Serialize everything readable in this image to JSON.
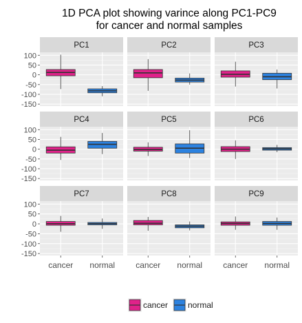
{
  "chart_data": {
    "type": "box",
    "title_lines": [
      "1D PCA plot showing varince along PC1-PC9",
      "for cancer and normal samples"
    ],
    "facets": [
      "PC1",
      "PC2",
      "PC3",
      "PC4",
      "PC5",
      "PC6",
      "PC7",
      "PC8",
      "PC9"
    ],
    "categories": [
      "cancer",
      "normal"
    ],
    "y_ticks": [
      100,
      50,
      0,
      -50,
      -100,
      -150
    ],
    "ylim": [
      -160,
      115
    ],
    "grid": true,
    "legend_position": "bottom",
    "colors": {
      "cancer": "#e0228a",
      "normal": "#2c82e0",
      "panel_bg": "#ebebeb",
      "strip_bg": "#d9d9d9",
      "grid_major": "#ffffff"
    },
    "legend": [
      {
        "label": "cancer",
        "color": "#e0228a"
      },
      {
        "label": "normal",
        "color": "#2c82e0"
      }
    ],
    "series": [
      {
        "facet": "PC1",
        "group": "cancer",
        "min": -73,
        "q1": -5,
        "median": 12,
        "q3": 27,
        "max": 103
      },
      {
        "facet": "PC1",
        "group": "normal",
        "min": -110,
        "q1": -92,
        "median": -82,
        "q3": -72,
        "max": -58
      },
      {
        "facet": "PC2",
        "group": "cancer",
        "min": -82,
        "q1": -15,
        "median": 10,
        "q3": 27,
        "max": 80
      },
      {
        "facet": "PC2",
        "group": "normal",
        "min": -50,
        "q1": -37,
        "median": -27,
        "q3": -17,
        "max": 7
      },
      {
        "facet": "PC3",
        "group": "cancer",
        "min": -60,
        "q1": -12,
        "median": 3,
        "q3": 20,
        "max": 67
      },
      {
        "facet": "PC3",
        "group": "normal",
        "min": -70,
        "q1": -25,
        "median": -10,
        "q3": 8,
        "max": 27
      },
      {
        "facet": "PC4",
        "group": "cancer",
        "min": -55,
        "q1": -20,
        "median": -5,
        "q3": 12,
        "max": 63
      },
      {
        "facet": "PC4",
        "group": "normal",
        "min": -25,
        "q1": 5,
        "median": 25,
        "q3": 40,
        "max": 83
      },
      {
        "facet": "PC5",
        "group": "cancer",
        "min": -35,
        "q1": -10,
        "median": -2,
        "q3": 10,
        "max": 35
      },
      {
        "facet": "PC5",
        "group": "normal",
        "min": -45,
        "q1": -20,
        "median": 5,
        "q3": 27,
        "max": 97
      },
      {
        "facet": "PC6",
        "group": "cancer",
        "min": -50,
        "q1": -12,
        "median": 0,
        "q3": 13,
        "max": 45
      },
      {
        "facet": "PC6",
        "group": "normal",
        "min": -15,
        "q1": -5,
        "median": 2,
        "q3": 8,
        "max": 22
      },
      {
        "facet": "PC7",
        "group": "cancer",
        "min": -40,
        "q1": -7,
        "median": 1,
        "q3": 12,
        "max": 40
      },
      {
        "facet": "PC7",
        "group": "normal",
        "min": -25,
        "q1": -5,
        "median": 1,
        "q3": 7,
        "max": 27
      },
      {
        "facet": "PC8",
        "group": "cancer",
        "min": -35,
        "q1": -5,
        "median": 3,
        "q3": 17,
        "max": 35
      },
      {
        "facet": "PC8",
        "group": "normal",
        "min": -33,
        "q1": -20,
        "median": -12,
        "q3": -5,
        "max": 12
      },
      {
        "facet": "PC9",
        "group": "cancer",
        "min": -30,
        "q1": -7,
        "median": 2,
        "q3": 10,
        "max": 37
      },
      {
        "facet": "PC9",
        "group": "normal",
        "min": -30,
        "q1": -7,
        "median": 2,
        "q3": 12,
        "max": 32
      }
    ]
  }
}
